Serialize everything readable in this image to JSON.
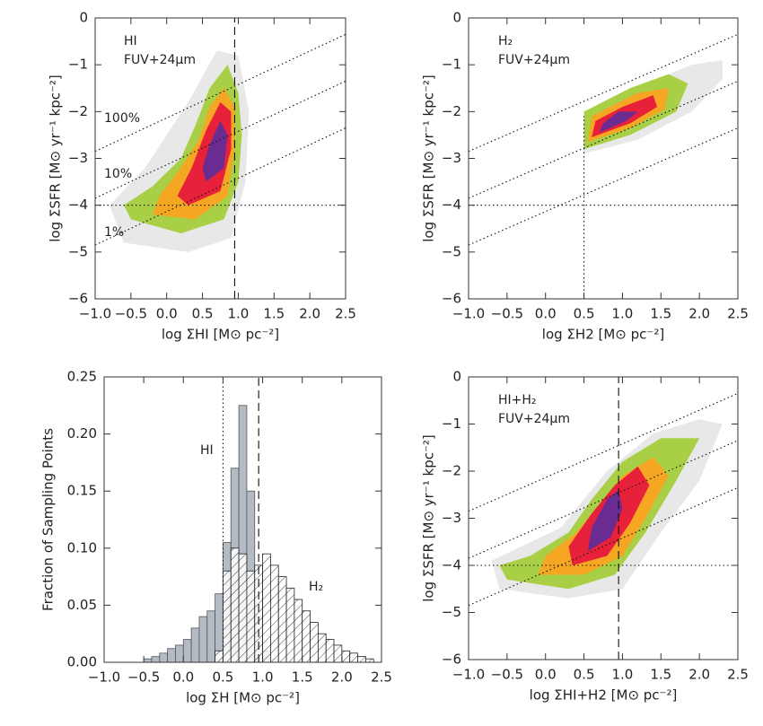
{
  "chart_data": [
    {
      "type": "density",
      "x_label": "log ΣHI [M⊙ pc⁻²]",
      "y_label": "log ΣSFR [M⊙ yr⁻¹ kpc⁻²]",
      "annotations": [
        "HI",
        "FUV+24μm",
        "100%",
        "10%",
        "1%"
      ],
      "xlim": [
        -1,
        2.5
      ],
      "ylim": [
        -6,
        0
      ],
      "xticks": [
        {
          "value": -1,
          "label": "−1.0"
        },
        {
          "value": -0.5,
          "label": "−0.5"
        },
        {
          "value": 0,
          "label": "0.0"
        },
        {
          "value": 0.5,
          "label": "0.5"
        },
        {
          "value": 1,
          "label": "1.0"
        },
        {
          "value": 1.5,
          "label": "1.5"
        },
        {
          "value": 2,
          "label": "2.0"
        },
        {
          "value": 2.5,
          "label": "2.5"
        }
      ],
      "yticks": [
        0,
        {
          "value": -1,
          "label": "−1"
        },
        {
          "value": -2,
          "label": "−2"
        },
        {
          "value": -3,
          "label": "−3"
        },
        {
          "value": -4,
          "label": "−4"
        },
        {
          "value": -5,
          "label": "−5"
        },
        {
          "value": -6,
          "label": "−6"
        }
      ],
      "series": [
        {
          "color": "#e8e8e8",
          "x": [
            -0.6,
            0.3,
            0.9,
            1.1,
            1.15,
            1.0,
            0.7,
            0.3,
            -0.3,
            -0.8
          ],
          "y": [
            -4.8,
            -5.0,
            -4.7,
            -3.5,
            -2.0,
            -0.8,
            -0.7,
            -1.8,
            -3.2,
            -4.0
          ]
        },
        {
          "color": "#a8cf45",
          "x": [
            -0.5,
            0.2,
            0.8,
            1.0,
            1.05,
            1.0,
            0.85,
            0.6,
            0.4,
            0.2,
            -0.2,
            -0.6
          ],
          "y": [
            -4.3,
            -4.6,
            -4.3,
            -3.5,
            -2.5,
            -1.6,
            -1.0,
            -1.5,
            -2.3,
            -3.0,
            -3.6,
            -4.0
          ]
        },
        {
          "color": "#f5a623",
          "x": [
            -0.2,
            0.4,
            0.85,
            0.95,
            0.95,
            0.8,
            0.6,
            0.45,
            0.2,
            -0.1
          ],
          "y": [
            -4.2,
            -4.3,
            -3.8,
            -2.8,
            -1.9,
            -1.5,
            -1.9,
            -2.6,
            -3.2,
            -3.8
          ]
        },
        {
          "color": "#e8213a",
          "x": [
            0.3,
            0.75,
            0.9,
            0.9,
            0.75,
            0.55,
            0.35,
            0.15
          ],
          "y": [
            -4.0,
            -3.7,
            -2.8,
            -2.0,
            -1.8,
            -2.4,
            -3.2,
            -3.8
          ]
        },
        {
          "color": "#6a2c91",
          "x": [
            0.55,
            0.8,
            0.85,
            0.75,
            0.6,
            0.5
          ],
          "y": [
            -3.5,
            -3.2,
            -2.5,
            -2.2,
            -2.7,
            -3.2
          ]
        }
      ],
      "lines": [
        {
          "x": [
            -1,
            2.5
          ],
          "y": [
            -2.85,
            -0.35
          ],
          "style": "dotted"
        },
        {
          "x": [
            -1,
            2.5
          ],
          "y": [
            -3.85,
            -1.35
          ],
          "style": "dotted"
        },
        {
          "x": [
            -1,
            2.5
          ],
          "y": [
            -4.85,
            -2.35
          ],
          "style": "dotted"
        },
        {
          "x": [
            -1,
            2.5
          ],
          "y": [
            -4,
            -4
          ],
          "style": "dotted"
        },
        {
          "x": [
            0.95,
            0.95
          ],
          "y": [
            -6,
            0
          ],
          "style": "dashed"
        }
      ]
    },
    {
      "type": "density",
      "x_label": "log ΣH2 [M⊙ pc⁻²]",
      "y_label": "log ΣSFR [M⊙ yr⁻¹ kpc⁻²]",
      "annotations": [
        "H₂",
        "FUV+24μm"
      ],
      "xlim": [
        -1,
        2.5
      ],
      "ylim": [
        -6,
        0
      ],
      "xticks": [
        {
          "value": -1,
          "label": "−1.0"
        },
        {
          "value": -0.5,
          "label": "−0.5"
        },
        {
          "value": 0,
          "label": "0.0"
        },
        {
          "value": 0.5,
          "label": "0.5"
        },
        {
          "value": 1,
          "label": "1.0"
        },
        {
          "value": 1.5,
          "label": "1.5"
        },
        {
          "value": 2,
          "label": "2.0"
        },
        {
          "value": 2.5,
          "label": "2.5"
        }
      ],
      "yticks": [
        0,
        {
          "value": -1,
          "label": "−1"
        },
        {
          "value": -2,
          "label": "−2"
        },
        {
          "value": -3,
          "label": "−3"
        },
        {
          "value": -4,
          "label": "−4"
        },
        {
          "value": -5,
          "label": "−5"
        },
        {
          "value": -6,
          "label": "−6"
        }
      ],
      "series": [
        {
          "color": "#e8e8e8",
          "x": [
            0.5,
            1.2,
            1.9,
            2.3,
            2.3,
            1.9,
            1.3,
            0.5
          ],
          "y": [
            -2.9,
            -2.6,
            -2.0,
            -1.3,
            -0.9,
            -1.0,
            -1.4,
            -2.0
          ]
        },
        {
          "color": "#a8cf45",
          "x": [
            0.5,
            1.1,
            1.7,
            1.85,
            1.6,
            1.1,
            0.5
          ],
          "y": [
            -2.8,
            -2.5,
            -2.0,
            -1.4,
            -1.2,
            -1.5,
            -2.0
          ]
        },
        {
          "color": "#f5a623",
          "x": [
            0.55,
            1.1,
            1.55,
            1.6,
            1.2,
            0.6
          ],
          "y": [
            -2.65,
            -2.35,
            -1.95,
            -1.5,
            -1.6,
            -2.1
          ]
        },
        {
          "color": "#e8213a",
          "x": [
            0.6,
            1.1,
            1.45,
            1.4,
            1.0,
            0.65
          ],
          "y": [
            -2.55,
            -2.25,
            -1.9,
            -1.65,
            -1.9,
            -2.2
          ]
        },
        {
          "color": "#6a2c91",
          "x": [
            0.7,
            1.05,
            1.2,
            0.95,
            0.75
          ],
          "y": [
            -2.45,
            -2.2,
            -2.0,
            -2.0,
            -2.25
          ]
        }
      ],
      "lines": [
        {
          "x": [
            -1,
            2.5
          ],
          "y": [
            -2.85,
            -0.35
          ],
          "style": "dotted"
        },
        {
          "x": [
            -1,
            2.5
          ],
          "y": [
            -3.85,
            -1.35
          ],
          "style": "dotted"
        },
        {
          "x": [
            -1,
            2.5
          ],
          "y": [
            -4.85,
            -2.35
          ],
          "style": "dotted"
        },
        {
          "x": [
            -1,
            2.5
          ],
          "y": [
            -4,
            -4
          ],
          "style": "dotted"
        },
        {
          "x": [
            0.5,
            0.5
          ],
          "y": [
            -6,
            -2.1
          ],
          "style": "dotted"
        }
      ]
    },
    {
      "type": "histogram",
      "x_label": "log ΣH [M⊙ pc⁻²]",
      "y_label": "Fraction of Sampling Points",
      "xlim": [
        -1,
        2.5
      ],
      "ylim": [
        0,
        0.25
      ],
      "xticks": [
        {
          "value": -1,
          "label": "−1.0"
        },
        {
          "value": -0.5,
          "label": "−0.5"
        },
        {
          "value": 0,
          "label": "0.0"
        },
        {
          "value": 0.5,
          "label": "0.5"
        },
        {
          "value": 1,
          "label": "1.0"
        },
        {
          "value": 1.5,
          "label": "1.5"
        },
        {
          "value": 2,
          "label": "2.0"
        },
        {
          "value": 2.5,
          "label": "2.5"
        }
      ],
      "yticks": [
        {
          "value": 0,
          "label": "0.00"
        },
        {
          "value": 0.05,
          "label": "0.05"
        },
        {
          "value": 0.1,
          "label": "0.10"
        },
        {
          "value": 0.15,
          "label": "0.15"
        },
        {
          "value": 0.2,
          "label": "0.20"
        },
        {
          "value": 0.25,
          "label": "0.25"
        }
      ],
      "bins": [
        -0.5,
        -0.4,
        -0.3,
        -0.2,
        -0.1,
        0.0,
        0.1,
        0.2,
        0.3,
        0.4,
        0.5,
        0.6,
        0.7,
        0.8,
        0.9,
        1.0,
        1.1,
        1.2,
        1.3,
        1.4,
        1.5,
        1.6,
        1.7,
        1.8,
        1.9,
        2.0,
        2.1,
        2.2,
        2.3,
        2.4
      ],
      "series": [
        {
          "name": "HI",
          "color": "#b3bbc4",
          "fill": "solid",
          "values": [
            0.003,
            0.005,
            0.008,
            0.012,
            0.015,
            0.02,
            0.03,
            0.04,
            0.045,
            0.06,
            0.105,
            0.17,
            0.225,
            0.15,
            0.04,
            0.01,
            0.003,
            0,
            0,
            0,
            0,
            0,
            0,
            0,
            0,
            0,
            0,
            0,
            0
          ]
        },
        {
          "name": "H₂",
          "color": "#222222",
          "fill": "hatch",
          "values": [
            0,
            0,
            0,
            0,
            0,
            0,
            0,
            0,
            0,
            0.01,
            0.08,
            0.1,
            0.095,
            0.08,
            0.085,
            0.095,
            0.085,
            0.075,
            0.065,
            0.055,
            0.045,
            0.035,
            0.025,
            0.02,
            0.015,
            0.01,
            0.008,
            0.005,
            0.003
          ]
        }
      ],
      "lines": [
        {
          "x": [
            0.5,
            0.5
          ],
          "y": [
            0,
            0.25
          ],
          "style": "dotted"
        },
        {
          "x": [
            0.95,
            0.95
          ],
          "y": [
            0,
            0.25
          ],
          "style": "dashed"
        }
      ]
    },
    {
      "type": "density",
      "x_label": "log ΣHI+H2 [M⊙ pc⁻²]",
      "y_label": "log ΣSFR [M⊙ yr⁻¹ kpc⁻²]",
      "annotations": [
        "HI+H₂",
        "FUV+24μm"
      ],
      "xlim": [
        -1,
        2.5
      ],
      "ylim": [
        -6,
        0
      ],
      "xticks": [
        {
          "value": -1,
          "label": "−1.0"
        },
        {
          "value": -0.5,
          "label": "−0.5"
        },
        {
          "value": 0,
          "label": "0.0"
        },
        {
          "value": 0.5,
          "label": "0.5"
        },
        {
          "value": 1,
          "label": "1.0"
        },
        {
          "value": 1.5,
          "label": "1.5"
        },
        {
          "value": 2,
          "label": "2.0"
        },
        {
          "value": 2.5,
          "label": "2.5"
        }
      ],
      "yticks": [
        0,
        {
          "value": -1,
          "label": "−1"
        },
        {
          "value": -2,
          "label": "−2"
        },
        {
          "value": -3,
          "label": "−3"
        },
        {
          "value": -4,
          "label": "−4"
        },
        {
          "value": -5,
          "label": "−5"
        },
        {
          "value": -6,
          "label": "−6"
        }
      ],
      "series": [
        {
          "color": "#e8e8e8",
          "x": [
            -0.6,
            0.3,
            1.0,
            1.5,
            2.0,
            2.3,
            2.0,
            1.4,
            0.8,
            0.2,
            -0.7
          ],
          "y": [
            -4.5,
            -4.7,
            -4.5,
            -3.3,
            -2.2,
            -1.0,
            -0.9,
            -1.2,
            -2.0,
            -3.2,
            -3.9
          ]
        },
        {
          "color": "#a8cf45",
          "x": [
            -0.5,
            0.3,
            0.9,
            1.3,
            1.7,
            2.0,
            1.5,
            1.0,
            0.6,
            0.3,
            -0.2,
            -0.6
          ],
          "y": [
            -4.3,
            -4.5,
            -4.2,
            -3.3,
            -2.2,
            -1.3,
            -1.3,
            -1.8,
            -2.6,
            -3.3,
            -3.8,
            -4.0
          ]
        },
        {
          "color": "#f5a623",
          "x": [
            -0.1,
            0.5,
            1.0,
            1.3,
            1.6,
            1.4,
            1.0,
            0.7,
            0.4,
            0.0
          ],
          "y": [
            -4.2,
            -4.2,
            -3.8,
            -3.0,
            -2.1,
            -1.7,
            -2.1,
            -2.7,
            -3.3,
            -3.8
          ]
        },
        {
          "color": "#e8213a",
          "x": [
            0.35,
            0.8,
            1.1,
            1.35,
            1.2,
            0.9,
            0.6,
            0.3
          ],
          "y": [
            -4.0,
            -3.8,
            -3.1,
            -2.3,
            -1.9,
            -2.3,
            -2.9,
            -3.6
          ]
        },
        {
          "color": "#6a2c91",
          "x": [
            0.55,
            0.85,
            1.0,
            0.95,
            0.8,
            0.6
          ],
          "y": [
            -3.7,
            -3.4,
            -2.8,
            -2.4,
            -2.6,
            -3.2
          ]
        }
      ],
      "lines": [
        {
          "x": [
            -1,
            2.5
          ],
          "y": [
            -2.85,
            -0.35
          ],
          "style": "dotted"
        },
        {
          "x": [
            -1,
            2.5
          ],
          "y": [
            -3.85,
            -1.35
          ],
          "style": "dotted"
        },
        {
          "x": [
            -1,
            2.5
          ],
          "y": [
            -4.85,
            -2.35
          ],
          "style": "dotted"
        },
        {
          "x": [
            -1,
            2.5
          ],
          "y": [
            -4,
            -4
          ],
          "style": "dotted"
        },
        {
          "x": [
            0.95,
            0.95
          ],
          "y": [
            -6,
            0
          ],
          "style": "dashed"
        }
      ]
    }
  ]
}
